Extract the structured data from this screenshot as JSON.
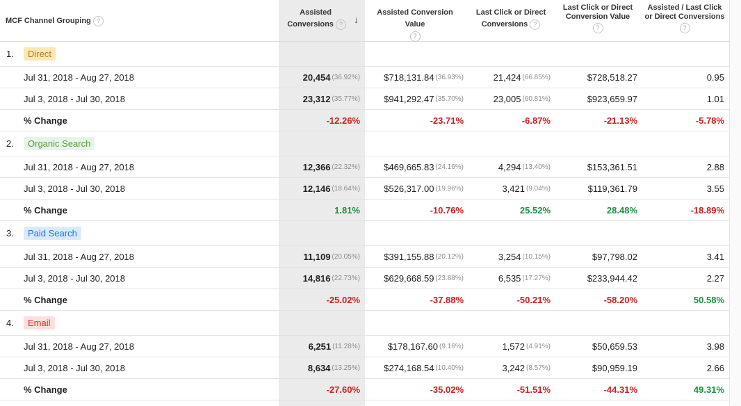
{
  "headers": {
    "grouping": "MCF Channel Grouping",
    "assisted_l1": "Assisted",
    "assisted_l2": "Conversions",
    "acv": "Assisted Conversion Value",
    "lcc_l1": "Last Click or Direct",
    "lcc_l2": "Conversions",
    "lcv_l1": "Last Click or Direct",
    "lcv_l2": "Conversion Value",
    "ratio_l1": "Assisted / Last Click",
    "ratio_l2": "or Direct Conversions",
    "help": "?",
    "sort_icon": "↓"
  },
  "groups": [
    {
      "index": "1.",
      "name": "Direct",
      "chip_bg": "#fce8b2",
      "chip_fg": "#b7791f",
      "rows": [
        {
          "label": "Jul 31, 2018 - Aug 27, 2018",
          "ac": "20,454",
          "ac_pct": "(36.92%)",
          "acv": "$718,131.84",
          "acv_pct": "(36.93%)",
          "lcc": "21,424",
          "lcc_pct": "(66.85%)",
          "lcv": "$728,518.27",
          "ratio": "0.95"
        },
        {
          "label": "Jul 3, 2018 - Jul 30, 2018",
          "ac": "23,312",
          "ac_pct": "(35.77%)",
          "acv": "$941,292.47",
          "acv_pct": "(35.70%)",
          "lcc": "23,005",
          "lcc_pct": "(60.81%)",
          "lcv": "$923,659.97",
          "ratio": "1.01"
        }
      ],
      "change": {
        "label": "% Change",
        "ac": "-12.26%",
        "acv": "-23.71%",
        "lcc": "-6.87%",
        "lcv": "-21.13%",
        "ratio": "-5.78%"
      }
    },
    {
      "index": "2.",
      "name": "Organic Search",
      "chip_bg": "#e6f4ea",
      "chip_fg": "#5a9e2f",
      "rows": [
        {
          "label": "Jul 31, 2018 - Aug 27, 2018",
          "ac": "12,366",
          "ac_pct": "(22.32%)",
          "acv": "$469,665.83",
          "acv_pct": "(24.16%)",
          "lcc": "4,294",
          "lcc_pct": "(13.40%)",
          "lcv": "$153,361.51",
          "ratio": "2.88"
        },
        {
          "label": "Jul 3, 2018 - Jul 30, 2018",
          "ac": "12,146",
          "ac_pct": "(18.64%)",
          "acv": "$526,317.00",
          "acv_pct": "(19.96%)",
          "lcc": "3,421",
          "lcc_pct": "(9.04%)",
          "lcv": "$119,361.79",
          "ratio": "3.55"
        }
      ],
      "change": {
        "label": "% Change",
        "ac": "1.81%",
        "acv": "-10.76%",
        "lcc": "25.52%",
        "lcv": "28.48%",
        "ratio": "-18.89%"
      }
    },
    {
      "index": "3.",
      "name": "Paid Search",
      "chip_bg": "#dbeafb",
      "chip_fg": "#1a73e8",
      "rows": [
        {
          "label": "Jul 31, 2018 - Aug 27, 2018",
          "ac": "11,109",
          "ac_pct": "(20.05%)",
          "acv": "$391,155.88",
          "acv_pct": "(20.12%)",
          "lcc": "3,254",
          "lcc_pct": "(10.15%)",
          "lcv": "$97,798.02",
          "ratio": "3.41"
        },
        {
          "label": "Jul 3, 2018 - Jul 30, 2018",
          "ac": "14,816",
          "ac_pct": "(22.73%)",
          "acv": "$629,668.59",
          "acv_pct": "(23.88%)",
          "lcc": "6,535",
          "lcc_pct": "(17.27%)",
          "lcv": "$233,944.42",
          "ratio": "2.27"
        }
      ],
      "change": {
        "label": "% Change",
        "ac": "-25.02%",
        "acv": "-37.88%",
        "lcc": "-50.21%",
        "lcv": "-58.20%",
        "ratio": "50.58%"
      }
    },
    {
      "index": "4.",
      "name": "Email",
      "chip_bg": "#fce0e0",
      "chip_fg": "#d93025",
      "rows": [
        {
          "label": "Jul 31, 2018 - Aug 27, 2018",
          "ac": "6,251",
          "ac_pct": "(11.28%)",
          "acv": "$178,167.60",
          "acv_pct": "(9.16%)",
          "lcc": "1,572",
          "lcc_pct": "(4.91%)",
          "lcv": "$50,659.53",
          "ratio": "3.98"
        },
        {
          "label": "Jul 3, 2018 - Jul 30, 2018",
          "ac": "8,634",
          "ac_pct": "(13.25%)",
          "acv": "$274,168.54",
          "acv_pct": "(10.40%)",
          "lcc": "3,242",
          "lcc_pct": "(8.57%)",
          "lcv": "$90,959.19",
          "ratio": "2.66"
        }
      ],
      "change": {
        "label": "% Change",
        "ac": "-27.60%",
        "acv": "-35.02%",
        "lcc": "-51.51%",
        "lcv": "-44.31%",
        "ratio": "49.31%"
      }
    }
  ]
}
